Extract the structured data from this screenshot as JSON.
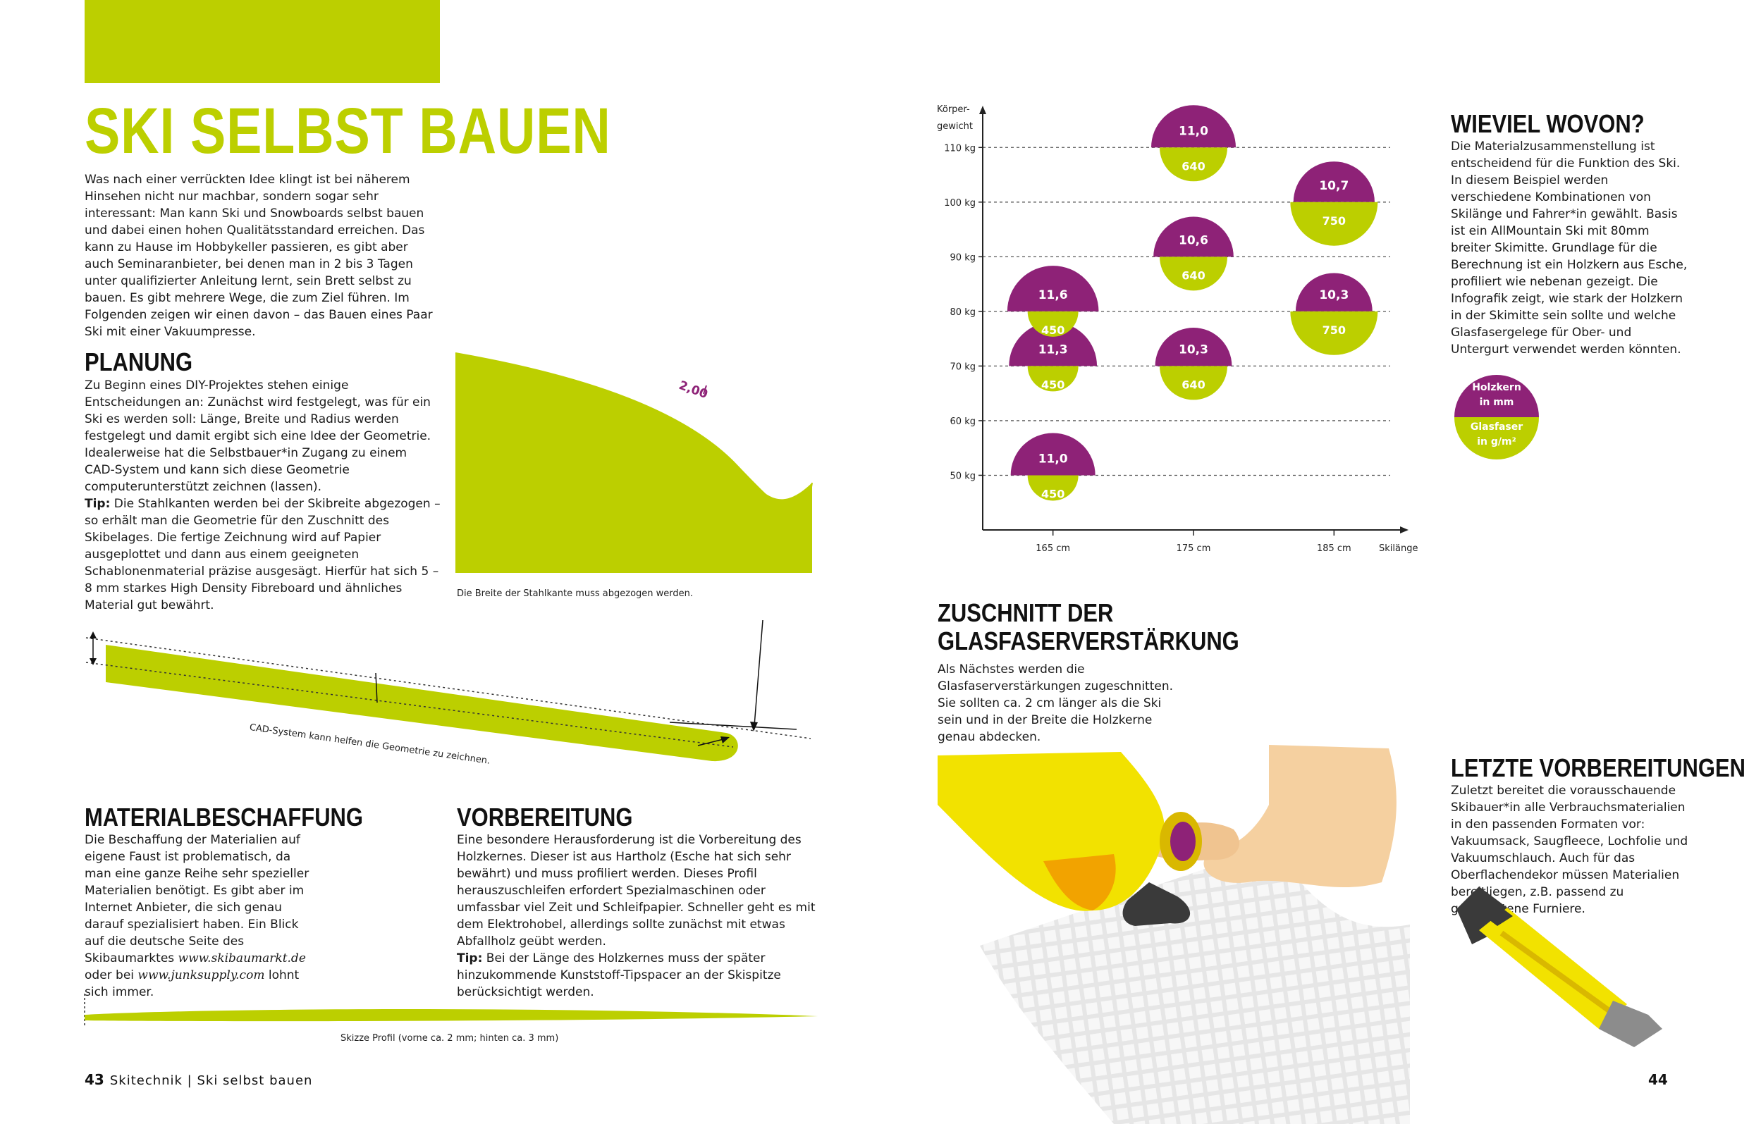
{
  "left": {
    "title": "SKI SELBST BAUEN",
    "intro": "Was nach einer verrückten Idee klingt ist bei näherem Hinsehen nicht nur machbar, sondern sogar sehr interessant: Man kann Ski und Snowboards selbst bauen und dabei einen hohen Qualitätsstandard erreichen. Das kann zu Hause im Hobbykeller passieren, es gibt aber auch Seminaranbieter, bei denen man in 2 bis 3 Tagen unter qualifizierter Anleitung lernt, sein Brett selbst zu bauen. Es gibt mehrere Wege, die zum Ziel führen. Im Folgenden zeigen wir einen davon – das Bauen eines Paar Ski mit einer Vakuumpresse.",
    "planung": {
      "heading": "PLANUNG",
      "text": "Zu Beginn eines DIY-Projektes stehen einige Entscheidungen an: Zunächst wird festgelegt, was für ein Ski  es werden soll: Länge, Breite und Radius werden festgelegt und damit ergibt sich eine Idee der Geometrie. Idealerweise hat die Selbstbauer*in Zugang zu einem CAD-System und kann sich diese Geometrie computerunterstützt zeichnen (lassen).",
      "tip_label": "Tip:",
      "tip_text": " Die Stahlkanten werden bei der Skibreite abgezogen – so erhält man die Geometrie für den Zuschnitt des Skibelages. Die fertige Zeichnung wird auf Papier ausgeplottet und dann aus einem geeigneten Schablonenmaterial präzise ausgesägt. Hierfür hat sich 5 – 8 mm starkes High Density Fibreboard und ähnliches Material gut bewährt."
    },
    "steel_edge": {
      "value_label": "2,00",
      "caption": "Die Breite der Stahlkante muss abgezogen werden."
    },
    "cad_caption": "CAD-System kann helfen die Geometrie zu zeichnen.",
    "material": {
      "heading": "MATERIALBESCHAFFUNG",
      "text_before": "Die Beschaffung der Materialien auf eigene Faust ist problematisch, da man eine ganze Reihe sehr spezieller Materialien benötigt. Es gibt aber im Internet Anbieter, die sich genau darauf spezialisiert haben. Ein Blick auf die deutsche Seite des Skibaumarktes ",
      "link1": "www.skibaumarkt.de",
      "text_mid": " oder bei ",
      "link2": "www.junksupply.com",
      "text_after": " lohnt sich immer."
    },
    "vorbereitung": {
      "heading": "VORBEREITUNG",
      "text": "Eine besondere Herausforderung ist die Vorbereitung des Holzkernes. Dieser ist aus Hartholz (Esche hat sich sehr bewährt) und muss profiliert werden. Dieses Profil herauszuschleifen erfordert Spezialmaschinen oder umfassbar viel Zeit und Schleifpapier. Schneller geht es mit dem Elektrohobel, allerdings sollte zunächst mit etwas Abfallholz geübt werden.",
      "tip_label": "Tip:",
      "tip_text": " Bei der Länge des Holzkernes muss der später hinzukommende Kunststoff-Tipspacer an der Skispitze berücksichtigt werden."
    },
    "profile_caption": "Skizze Profil (vorne ca. 2 mm; hinten ca. 3 mm)",
    "footer": {
      "page": "43",
      "section": "Skitechnik  |  Ski selbst bauen"
    }
  },
  "chart_data": {
    "type": "scatter",
    "ylabel": "Körper-\ngewicht",
    "xlabel": "Skilänge",
    "x_ticks": [
      "165 cm",
      "175 cm",
      "185 cm"
    ],
    "y_ticks": [
      "50 kg",
      "60 kg",
      "70 kg",
      "80 kg",
      "90 kg",
      "100 kg",
      "110 kg"
    ],
    "x_range": [
      160,
      190
    ],
    "y_range": [
      40,
      117
    ],
    "points": [
      {
        "x": 165,
        "y": 50,
        "holzkern": "11,0",
        "glasfaser": "450"
      },
      {
        "x": 165,
        "y": 70,
        "holzkern": "11,3",
        "glasfaser": "450"
      },
      {
        "x": 165,
        "y": 80,
        "holzkern": "11,6",
        "glasfaser": "450"
      },
      {
        "x": 175,
        "y": 70,
        "holzkern": "10,3",
        "glasfaser": "640"
      },
      {
        "x": 175,
        "y": 90,
        "holzkern": "10,6",
        "glasfaser": "640"
      },
      {
        "x": 175,
        "y": 110,
        "holzkern": "11,0",
        "glasfaser": "640"
      },
      {
        "x": 185,
        "y": 80,
        "holzkern": "10,3",
        "glasfaser": "750"
      },
      {
        "x": 185,
        "y": 100,
        "holzkern": "10,7",
        "glasfaser": "750"
      }
    ],
    "colors": {
      "holzkern": "#8e2277",
      "glasfaser": "#bccf00"
    }
  },
  "right": {
    "wieviel": {
      "heading": "WIEVIEL WOVON?",
      "text": "Die Materialzusammenstellung ist entscheidend für die Funktion des Ski. In diesem Beispiel werden verschiedene Kombinationen von Skilänge und Fahrer*in gewählt. Basis ist ein AllMountain Ski mit 80mm breiter Skimitte. Grundlage für die Berechnung ist ein Holzkern aus Esche, profiliert wie nebenan gezeigt. Die Infografik zeigt, wie stark der Holzkern in der Skimitte sein sollte und welche Glasfasergelege für Ober- und Untergurt verwendet werden könnten."
    },
    "legend": {
      "top_line1": "Holzkern",
      "top_line2": "in mm",
      "bottom_line1": "Glasfaser",
      "bottom_line2": "in g/m²"
    },
    "zuschnitt": {
      "heading_line1": "ZUSCHNITT DER",
      "heading_line2": "GLASFASERVERSTÄRKUNG",
      "text": "Als Nächstes werden die Glasfaserverstärkungen zugeschnitten. Sie sollten ca. 2 cm länger als die Ski sein und in der Breite die Holzkerne genau abdecken."
    },
    "letzte": {
      "heading": "LETZTE VORBEREITUNGEN",
      "text": "Zuletzt bereitet die vorausschauende Skibauer*in alle Verbrauchsmaterialien in den passenden Formaten vor: Vakuumsack, Saugfleece, Lochfolie und Vakuumschlauch. Auch für das Oberflachendekor müssen Materialien bereitliegen, z.B. passend zu geschnittene Furniere."
    },
    "footer": {
      "page": "44"
    }
  },
  "colors": {
    "accent_green": "#bccf00",
    "accent_purple": "#8e2277"
  }
}
